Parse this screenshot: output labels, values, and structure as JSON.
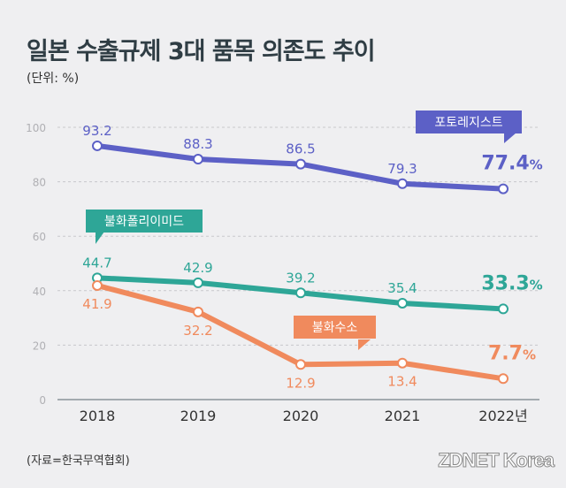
{
  "title": "일본 수출규제 3대 품목 의존도 추이",
  "unit": "(단위: %)",
  "source": "(자료=한국무역협회)",
  "logo": "ZDNET Korea",
  "chart_data": {
    "type": "line",
    "title": "일본 수출규제 3대 품목 의존도 추이",
    "categories": [
      "2018",
      "2019",
      "2020",
      "2021",
      "2022년"
    ],
    "ylim": [
      0,
      100
    ],
    "yticks": [
      "0",
      "20",
      "40",
      "60",
      "80",
      "100"
    ],
    "grid": true,
    "series": [
      {
        "name": "포토레지스트",
        "color": "#5c60c6",
        "values": [
          93.2,
          88.3,
          86.5,
          79.3,
          77.4
        ],
        "labels": [
          "93.2",
          "88.3",
          "86.5",
          "79.3",
          "77.4"
        ],
        "last_suffix": "%"
      },
      {
        "name": "불화폴리이미드",
        "color": "#2ea697",
        "values": [
          44.7,
          42.9,
          39.2,
          35.4,
          33.3
        ],
        "labels": [
          "44.7",
          "42.9",
          "39.2",
          "35.4",
          "33.3"
        ],
        "last_suffix": "%"
      },
      {
        "name": "불화수소",
        "color": "#f08a5d",
        "values": [
          41.9,
          32.2,
          12.9,
          13.4,
          7.7
        ],
        "labels": [
          "41.9",
          "32.2",
          "12.9",
          "13.4",
          "7.7"
        ],
        "last_suffix": "%"
      }
    ]
  }
}
